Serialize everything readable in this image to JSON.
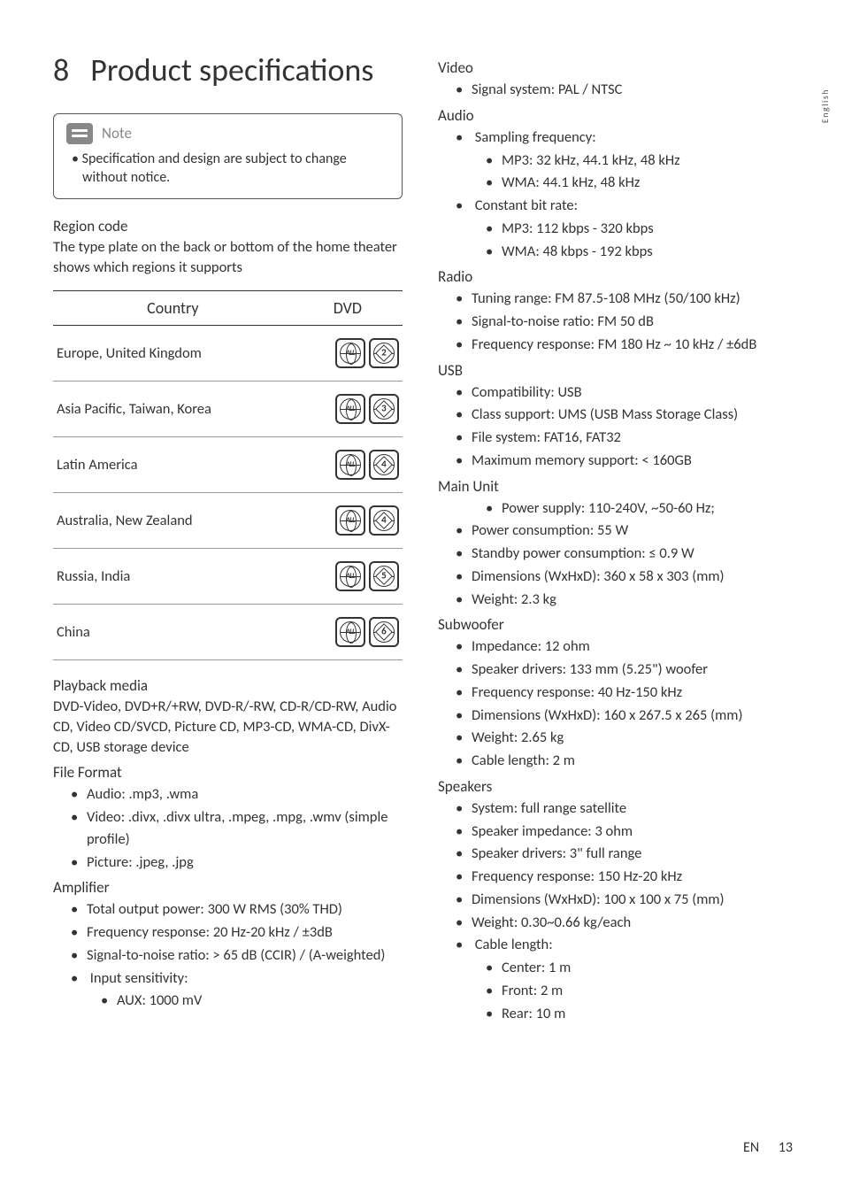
{
  "page": {
    "chapter_number": "8",
    "chapter_title": "Product specifications",
    "side_tab": "English",
    "footer_lang": "EN",
    "footer_page": "13"
  },
  "note": {
    "label": "Note",
    "text": "Specification and design are subject to change without notice."
  },
  "region": {
    "heading": "Region code",
    "intro": "The type plate on the back or bottom of the home theater shows which regions it supports",
    "col_country": "Country",
    "col_dvd": "DVD",
    "rows": [
      {
        "country": "Europe, United Kingdom",
        "code": "2"
      },
      {
        "country": "Asia Pacific, Taiwan, Korea",
        "code": "3"
      },
      {
        "country": "Latin America",
        "code": "4"
      },
      {
        "country": "Australia, New Zealand",
        "code": "4"
      },
      {
        "country": "Russia, India",
        "code": "5"
      },
      {
        "country": "China",
        "code": "6"
      }
    ],
    "all_label": "ALL"
  },
  "playback": {
    "heading": "Playback media",
    "text": "DVD-Video, DVD+R/+RW, DVD-R/-RW, CD-R/CD-RW, Audio CD, Video CD/SVCD, Picture CD, MP3-CD, WMA-CD, DivX-CD, USB storage device"
  },
  "file_format": {
    "heading": "File Format",
    "items": [
      "Audio: .mp3, .wma",
      "Video: .divx, .divx ultra, .mpeg, .mpg, .wmv (simple profile)",
      "Picture: .jpeg, .jpg"
    ]
  },
  "amplifier": {
    "heading": "Amplifier",
    "items": [
      "Total output power: 300 W RMS (30% THD)",
      "Frequency response: 20 Hz-20 kHz / ±3dB",
      "Signal-to-noise ratio: > 65 dB (CCIR) / (A-weighted)"
    ],
    "input_sens_label": "Input sensitivity:",
    "input_sens_items": [
      "AUX: 1000 mV"
    ]
  },
  "video": {
    "heading": "Video",
    "items": [
      "Signal system: PAL / NTSC"
    ]
  },
  "audio": {
    "heading": "Audio",
    "sampling_label": "Sampling frequency:",
    "sampling_items": [
      "MP3: 32 kHz, 44.1 kHz, 48 kHz",
      "WMA: 44.1 kHz, 48 kHz"
    ],
    "bitrate_label": "Constant bit rate:",
    "bitrate_items": [
      "MP3: 112 kbps - 320 kbps",
      "WMA: 48 kbps - 192 kbps"
    ]
  },
  "radio": {
    "heading": "Radio",
    "items": [
      "Tuning range: FM 87.5-108 MHz (50/100 kHz)",
      "Signal-to-noise ratio: FM 50 dB",
      "Frequency response: FM 180 Hz ~ 10 kHz / ±6dB"
    ]
  },
  "usb": {
    "heading": "USB",
    "items": [
      "Compatibility: USB",
      "Class support: UMS (USB Mass Storage Class)",
      "File system: FAT16, FAT32",
      "Maximum memory support: < 160GB"
    ]
  },
  "main_unit": {
    "heading": "Main Unit",
    "power_supply": "Power supply: 110-240V, ~50-60 Hz;",
    "items": [
      "Power consumption: 55 W",
      "Standby power consumption: ≤ 0.9 W",
      "Dimensions (WxHxD): 360 x 58 x 303 (mm)",
      "Weight: 2.3 kg"
    ]
  },
  "subwoofer": {
    "heading": "Subwoofer",
    "items": [
      "Impedance: 12 ohm",
      "Speaker drivers: 133 mm (5.25\") woofer",
      "Frequency response: 40 Hz-150 kHz",
      "Dimensions (WxHxD): 160 x 267.5 x 265 (mm)",
      "Weight: 2.65 kg",
      "Cable length: 2 m"
    ]
  },
  "speakers": {
    "heading": "Speakers",
    "items": [
      "System: full range satellite",
      "Speaker impedance: 3 ohm",
      "Speaker drivers: 3\" full range",
      "Frequency response: 150 Hz-20 kHz",
      "Dimensions (WxHxD): 100 x 100 x 75 (mm)",
      "Weight: 0.30~0.66 kg/each"
    ],
    "cable_label": "Cable length:",
    "cable_items": [
      "Center: 1 m",
      "Front: 2 m",
      "Rear: 10 m"
    ]
  }
}
